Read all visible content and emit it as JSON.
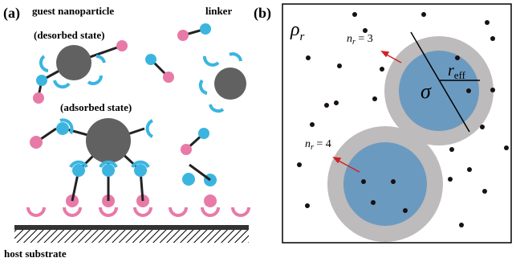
{
  "panel_a": {
    "label": "(a)",
    "guest": "guest nanoparticle",
    "linker": "linker",
    "desorbed": "(desorbed state)",
    "adsorbed": "(adsorbed state)",
    "substrate": "host substrate"
  },
  "panel_b": {
    "label": "(b)",
    "density": {
      "symbol": "ρ",
      "sub": "r"
    },
    "count_top": {
      "symbol": "n",
      "sub": "r",
      "rest": " = 3"
    },
    "count_bottom": {
      "symbol": "n",
      "sub": "r",
      "rest": " = 4"
    },
    "radius": {
      "symbol": "r",
      "sub": "eff"
    },
    "diameter": "σ"
  }
}
